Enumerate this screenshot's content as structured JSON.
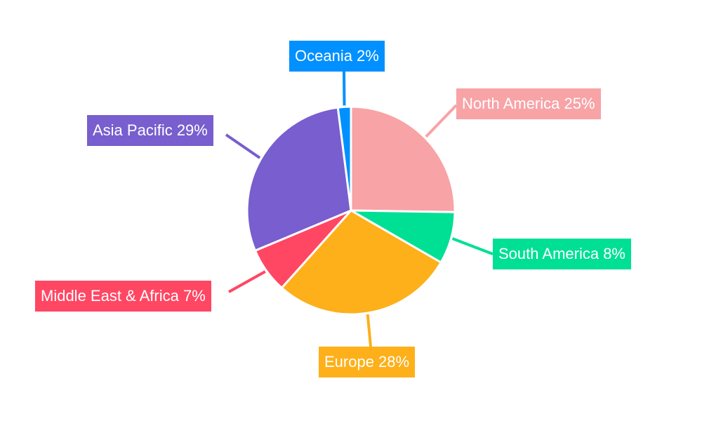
{
  "chart_data": {
    "type": "pie",
    "start_angle": "top",
    "direction": "clockwise",
    "slices": [
      {
        "label": "North America",
        "value": 25,
        "display": "North America 25%",
        "color": "#F8A3A6"
      },
      {
        "label": "South America",
        "value": 8,
        "display": "South America 8%",
        "color": "#00E094"
      },
      {
        "label": "Europe",
        "value": 28,
        "display": "Europe 28%",
        "color": "#FDB01A"
      },
      {
        "label": "Middle East & Africa",
        "value": 7,
        "display": "Middle East & Africa 7%",
        "color": "#FF4763"
      },
      {
        "label": "Asia Pacific",
        "value": 29,
        "display": "Asia Pacific 29%",
        "color": "#785ECE"
      },
      {
        "label": "Oceania",
        "value": 2,
        "display": "Oceania 2%",
        "color": "#0090FF"
      }
    ]
  }
}
